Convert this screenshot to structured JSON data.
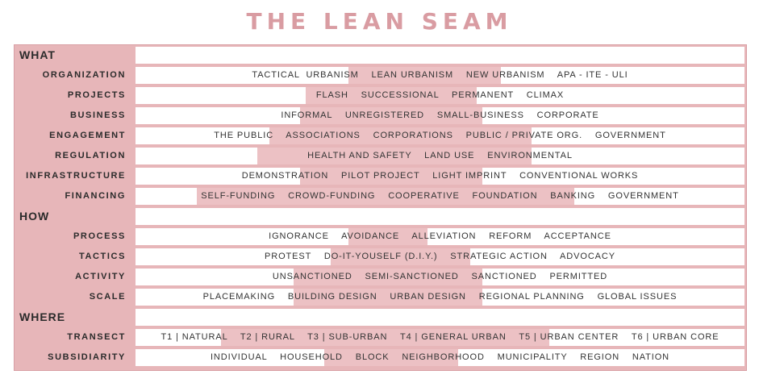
{
  "title": "THE LEAN SEAM",
  "colors": {
    "title": "#d99ca2",
    "frame": "#e7b6b9",
    "band": "#ecc1c4",
    "cell": "#ffffff",
    "text": "#333333"
  },
  "sections": {
    "what": "WHAT",
    "how": "HOW",
    "where": "WHERE"
  },
  "rows": {
    "organization": {
      "label": "ORGANIZATION",
      "content": "TACTICAL  URBANISM    LEAN URBANISM    NEW URBANISM    APA - ITE - ULI",
      "seam": [
        0.35,
        0.6
      ]
    },
    "projects": {
      "label": "PROJECTS",
      "content": "FLASH    SUCCESSIONAL    PERMANENT    CLIMAX",
      "seam": [
        0.28,
        0.56
      ]
    },
    "business": {
      "label": "BUSINESS",
      "content": "INFORMAL    UNREGISTERED    SMALL-BUSINESS    CORPORATE",
      "seam": [
        0.27,
        0.57
      ]
    },
    "engagement": {
      "label": "ENGAGEMENT",
      "content": "THE PUBLIC    ASSOCIATIONS    CORPORATIONS    PUBLIC / PRIVATE ORG.    GOVERNMENT",
      "seam": [
        0.22,
        0.65
      ]
    },
    "regulation": {
      "label": "REGULATION",
      "content": "HEALTH AND SAFETY    LAND USE    ENVIRONMENTAL",
      "seam": [
        0.2,
        0.65
      ]
    },
    "infrastructure": {
      "label": "INFRASTRUCTURE",
      "content": "DEMONSTRATION    PILOT PROJECT    LIGHT IMPRINT    CONVENTIONAL WORKS",
      "seam": [
        0.27,
        0.57
      ]
    },
    "financing": {
      "label": "FINANCING",
      "content": "SELF-FUNDING    CROWD-FUNDING    COOPERATIVE    FOUNDATION    BANKING    GOVERNMENT",
      "seam": [
        0.1,
        0.72
      ]
    },
    "process": {
      "label": "PROCESS",
      "content": "IGNORANCE    AVOIDANCE    ALLEVIATION    REFORM    ACCEPTANCE",
      "seam": [
        0.35,
        0.48
      ]
    },
    "tactics": {
      "label": "TACTICS",
      "content": "PROTEST    DO-IT-YOUSELF (D.I.Y.)    STRATEGIC ACTION    ADVOCACY",
      "seam": [
        0.32,
        0.55
      ]
    },
    "activity": {
      "label": "ACTIVITY",
      "content": "UNSANCTIONED    SEMI-SANCTIONED    SANCTIONED    PERMITTED",
      "seam": [
        0.26,
        0.57
      ]
    },
    "scale": {
      "label": "SCALE",
      "content": "PLACEMAKING    BUILDING DESIGN    URBAN DESIGN    REGIONAL PLANNING    GLOBAL ISSUES",
      "seam": [
        0.26,
        0.57
      ]
    },
    "transect": {
      "label": "TRANSECT",
      "content": "T1 | NATURAL    T2 | RURAL    T3 | SUB-URBAN    T4 | GENERAL URBAN    T5 | URBAN CENTER    T6 | URBAN CORE",
      "seam": [
        0.14,
        0.68
      ]
    },
    "subsidiarity": {
      "label": "SUBSIDIARITY",
      "content": "INDIVIDUAL    HOUSEHOLD    BLOCK    NEIGHBORHOOD    MUNICIPALITY    REGION    NATION",
      "seam": [
        0.31,
        0.53
      ]
    }
  }
}
